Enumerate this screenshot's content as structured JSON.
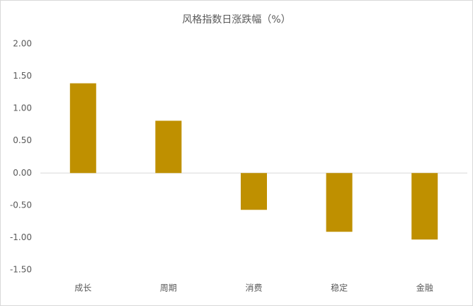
{
  "chart_data": {
    "type": "bar",
    "title": "风格指数日涨跌幅（%）",
    "categories": [
      "成长",
      "周期",
      "消费",
      "稳定",
      "金融"
    ],
    "values": [
      1.39,
      0.81,
      -0.57,
      -0.91,
      -1.03
    ],
    "color": "#bf9000",
    "ylim": [
      -1.5,
      2.0
    ],
    "yticks": [
      {
        "value": -1.5,
        "label": "-1.50"
      },
      {
        "value": -1.0,
        "label": "-1.00"
      },
      {
        "value": -0.5,
        "label": "-0.50"
      },
      {
        "value": 0,
        "label": "0.00"
      },
      {
        "value": 0.5,
        "label": "0.50"
      },
      {
        "value": 1.0,
        "label": "1.00"
      },
      {
        "value": 1.5,
        "label": "1.50"
      },
      {
        "value": 2.0,
        "label": "2.00"
      }
    ],
    "grid": false
  }
}
